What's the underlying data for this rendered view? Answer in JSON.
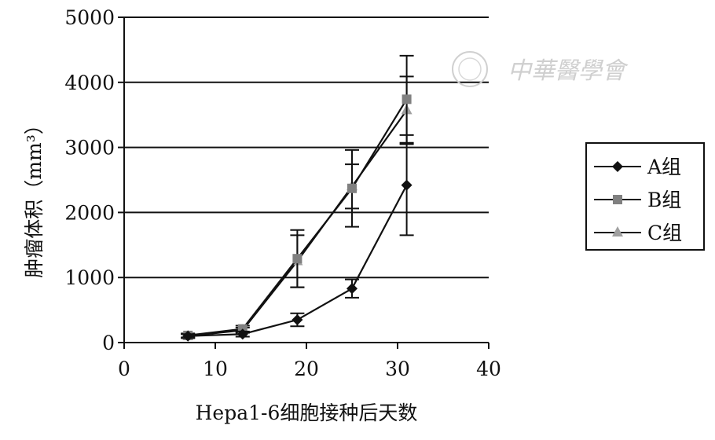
{
  "chart_data": {
    "type": "line",
    "xlabel": "Hepa1-6细胞接种后天数",
    "ylabel": "肿瘤体积（mm³）",
    "xlim": [
      0,
      40
    ],
    "ylim": [
      0,
      5000
    ],
    "x_ticks": [
      0,
      10,
      20,
      30,
      40
    ],
    "y_ticks": [
      0,
      1000,
      2000,
      3000,
      4000,
      5000
    ],
    "grid": "horizontal",
    "legend_position": "right",
    "series": [
      {
        "name": "A组",
        "marker": "diamond",
        "color": "#111111",
        "x": [
          7,
          13,
          19,
          25,
          31
        ],
        "y": [
          100,
          130,
          350,
          830,
          2420
        ],
        "err": [
          30,
          40,
          100,
          140,
          770
        ]
      },
      {
        "name": "B组",
        "marker": "square",
        "color": "#808080",
        "x": [
          7,
          13,
          19,
          25,
          31
        ],
        "y": [
          110,
          210,
          1290,
          2370,
          3740
        ],
        "err": [
          30,
          50,
          440,
          590,
          670
        ]
      },
      {
        "name": "C组",
        "marker": "triangle",
        "color": "#a0a0a0",
        "x": [
          7,
          13,
          19,
          25,
          31
        ],
        "y": [
          100,
          190,
          1250,
          2400,
          3570
        ],
        "err": [
          30,
          40,
          400,
          340,
          520
        ]
      }
    ]
  },
  "watermark": {
    "text": "中華醫學會"
  }
}
